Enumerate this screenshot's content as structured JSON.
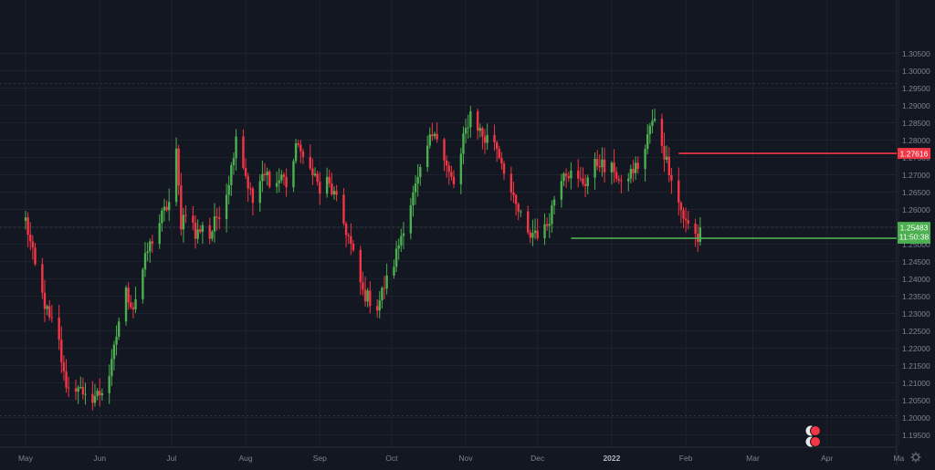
{
  "chart_data": {
    "type": "candlestick",
    "y_axis": {
      "range": [
        1.193,
        1.307
      ],
      "ticks": [
        "1.19500",
        "1.20000",
        "1.20500",
        "1.21000",
        "1.21500",
        "1.22000",
        "1.22500",
        "1.23000",
        "1.23500",
        "1.24000",
        "1.24500",
        "1.25000",
        "1.25500",
        "1.26000",
        "1.26500",
        "1.27000",
        "1.27500",
        "1.28000",
        "1.28500",
        "1.29000",
        "1.29500",
        "1.30000",
        "1.30500"
      ]
    },
    "x_axis": {
      "ticks": [
        {
          "label": "May",
          "day": 0
        },
        {
          "label": "Jun",
          "day": 31
        },
        {
          "label": "Jul",
          "day": 61
        },
        {
          "label": "Aug",
          "day": 92
        },
        {
          "label": "Sep",
          "day": 123
        },
        {
          "label": "Oct",
          "day": 153
        },
        {
          "label": "Nov",
          "day": 184
        },
        {
          "label": "Dec",
          "day": 214
        },
        {
          "label": "2022",
          "day": 245
        },
        {
          "label": "Feb",
          "day": 276
        },
        {
          "label": "Mar",
          "day": 304
        },
        {
          "label": "Apr",
          "day": 335
        },
        {
          "label": "Ma",
          "day": 365
        }
      ]
    },
    "price_path": [
      [
        0,
        1.257
      ],
      [
        5,
        1.24
      ],
      [
        10,
        1.228
      ],
      [
        13,
        1.226
      ],
      [
        16,
        1.212
      ],
      [
        19,
        1.206
      ],
      [
        22,
        1.21
      ],
      [
        24,
        1.205
      ],
      [
        28,
        1.206
      ],
      [
        31,
        1.207
      ],
      [
        34,
        1.21
      ],
      [
        36,
        1.215
      ],
      [
        39,
        1.228
      ],
      [
        42,
        1.236
      ],
      [
        45,
        1.232
      ],
      [
        48,
        1.24
      ],
      [
        51,
        1.248
      ],
      [
        54,
        1.253
      ],
      [
        57,
        1.258
      ],
      [
        60,
        1.262
      ],
      [
        61,
        1.27
      ],
      [
        63,
        1.276
      ],
      [
        65,
        1.256
      ],
      [
        68,
        1.262
      ],
      [
        71,
        1.252
      ],
      [
        74,
        1.256
      ],
      [
        77,
        1.252
      ],
      [
        80,
        1.258
      ],
      [
        83,
        1.262
      ],
      [
        86,
        1.272
      ],
      [
        88,
        1.282
      ],
      [
        90,
        1.276
      ],
      [
        92,
        1.27
      ],
      [
        95,
        1.262
      ],
      [
        98,
        1.268
      ],
      [
        101,
        1.27
      ],
      [
        104,
        1.266
      ],
      [
        107,
        1.27
      ],
      [
        110,
        1.266
      ],
      [
        112,
        1.274
      ],
      [
        114,
        1.28
      ],
      [
        117,
        1.27
      ],
      [
        120,
        1.272
      ],
      [
        123,
        1.265
      ],
      [
        126,
        1.268
      ],
      [
        129,
        1.264
      ],
      [
        132,
        1.258
      ],
      [
        135,
        1.252
      ],
      [
        138,
        1.244
      ],
      [
        141,
        1.236
      ],
      [
        144,
        1.234
      ],
      [
        147,
        1.232
      ],
      [
        150,
        1.238
      ],
      [
        153,
        1.242
      ],
      [
        156,
        1.25
      ],
      [
        159,
        1.258
      ],
      [
        162,
        1.264
      ],
      [
        165,
        1.27
      ],
      [
        168,
        1.278
      ],
      [
        171,
        1.284
      ],
      [
        174,
        1.276
      ],
      [
        177,
        1.27
      ],
      [
        180,
        1.266
      ],
      [
        183,
        1.28
      ],
      [
        186,
        1.288
      ],
      [
        189,
        1.284
      ],
      [
        192,
        1.28
      ],
      [
        195,
        1.282
      ],
      [
        198,
        1.276
      ],
      [
        201,
        1.27
      ],
      [
        204,
        1.262
      ],
      [
        207,
        1.258
      ],
      [
        210,
        1.252
      ],
      [
        213,
        1.254
      ],
      [
        216,
        1.252
      ],
      [
        219,
        1.258
      ],
      [
        222,
        1.266
      ],
      [
        225,
        1.272
      ],
      [
        228,
        1.27
      ],
      [
        231,
        1.268
      ],
      [
        234,
        1.268
      ],
      [
        237,
        1.272
      ],
      [
        240,
        1.274
      ],
      [
        243,
        1.27
      ],
      [
        246,
        1.272
      ],
      [
        249,
        1.266
      ],
      [
        252,
        1.27
      ],
      [
        255,
        1.272
      ],
      [
        258,
        1.274
      ],
      [
        261,
        1.284
      ],
      [
        264,
        1.286
      ],
      [
        267,
        1.276
      ],
      [
        270,
        1.27
      ],
      [
        273,
        1.262
      ],
      [
        276,
        1.256
      ],
      [
        279,
        1.254
      ],
      [
        282,
        1.25
      ]
    ],
    "horizontal_levels": [
      {
        "price": "1.27616",
        "value": 1.27616,
        "color": "#f23645",
        "from_day": 273
      },
      {
        "price": "1.25170",
        "value": 1.2517,
        "color": "#4caf50",
        "from_day": 228
      }
    ],
    "current_price": {
      "price": "1.25483",
      "value": 1.25483,
      "countdown": "11:50:38",
      "color": "#4caf50"
    },
    "colors": {
      "background": "#131722",
      "grid": "#1e222d",
      "up": "#4caf50",
      "down": "#f23645",
      "axis_text": "#7d8290",
      "crosshair": "#5b5f6b"
    }
  }
}
